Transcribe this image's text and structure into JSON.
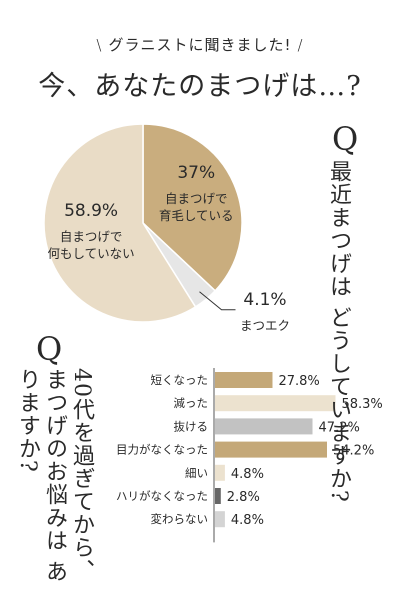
{
  "header": {
    "kicker": "グラニストに聞きました!",
    "headline": "今、あなたのまつげは…?"
  },
  "chart_data": [
    {
      "type": "pie",
      "question_mark": "Q",
      "question": "最近まつげは どうしていますか?",
      "slices": [
        {
          "label": "自まつげで 育毛している",
          "value": 37,
          "display": "37%",
          "color": "#c9ad7e"
        },
        {
          "label": "まつエク",
          "value": 4.1,
          "display": "4.1%",
          "color": "#e6e6e6"
        },
        {
          "label": "自まつげで 何もしていない",
          "value": 58.9,
          "display": "58.9%",
          "color": "#e9dcc6"
        }
      ]
    },
    {
      "type": "bar",
      "orientation": "horizontal",
      "question_mark": "Q",
      "question": "40代を過ぎてから、 まつげのお悩みは ありますか?",
      "xlim": [
        0,
        60
      ],
      "categories": [
        "短くなった",
        "減った",
        "抜ける",
        "目力がなくなった",
        "細い",
        "ハリがなくなった",
        "変わらない"
      ],
      "values": [
        27.8,
        58.3,
        47.2,
        54.2,
        4.8,
        2.8,
        4.8
      ],
      "value_labels": [
        "27.8%",
        "58.3%",
        "47.2%",
        "54.2%",
        "4.8%",
        "2.8%",
        "4.8%"
      ],
      "colors": [
        "#c4a878",
        "#ece2cf",
        "#c2c2c2",
        "#c4a878",
        "#ece2cf",
        "#666666",
        "#d4d4d4"
      ]
    }
  ]
}
